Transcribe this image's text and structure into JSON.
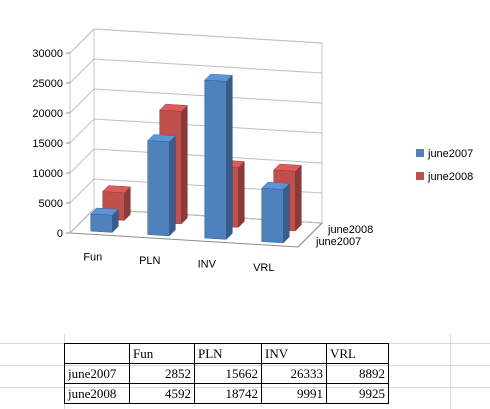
{
  "chart_data": {
    "type": "bar",
    "categories": [
      "Fun",
      "PLN",
      "INV",
      "VRL"
    ],
    "series": [
      {
        "name": "june2007",
        "values": [
          2852,
          15662,
          26333,
          8892
        ],
        "color": "#4f81bd"
      },
      {
        "name": "june2008",
        "values": [
          4592,
          18742,
          9991,
          9925
        ],
        "color": "#c0504d"
      }
    ],
    "ylim": [
      0,
      30000
    ],
    "yticks": [
      "0",
      "5000",
      "10000",
      "15000",
      "20000",
      "25000",
      "30000"
    ],
    "depth_labels": [
      "june2008",
      "june2007"
    ],
    "grid": true,
    "legend": "right",
    "title": "",
    "xlabel": "",
    "ylabel": ""
  },
  "table": {
    "headers": [
      "",
      "Fun",
      "PLN",
      "INV",
      "VRL"
    ],
    "rows": [
      {
        "label": "june2007",
        "values": [
          "2852",
          "15662",
          "26333",
          "8892"
        ]
      },
      {
        "label": "june2008",
        "values": [
          "4592",
          "18742",
          "9991",
          "9925"
        ]
      }
    ]
  }
}
